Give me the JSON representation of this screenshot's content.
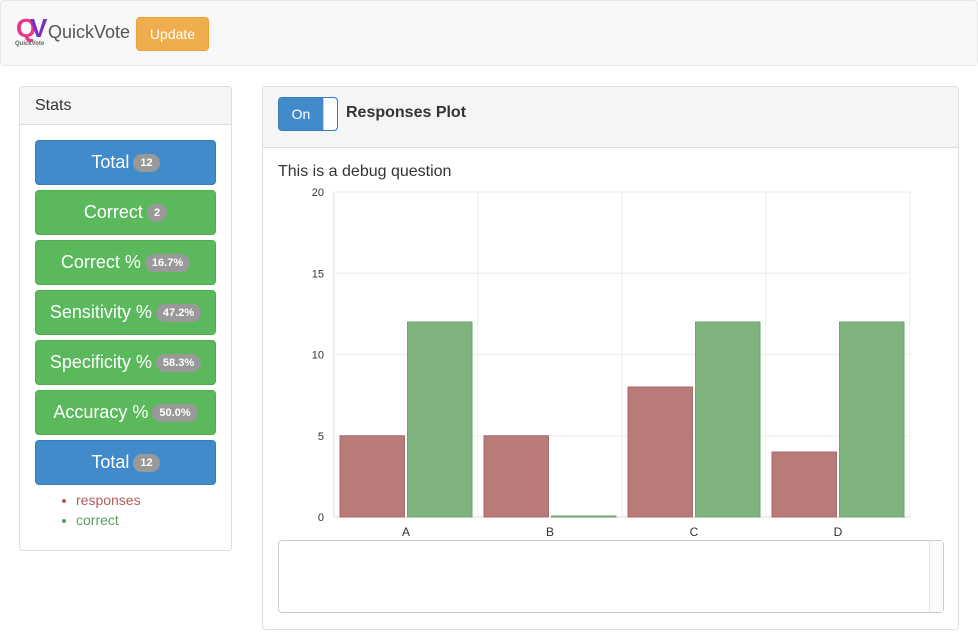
{
  "navbar": {
    "logo_letters": "QV",
    "logo_small": "QuickVote",
    "brand": "QuickVote",
    "update_label": "Update"
  },
  "stats": {
    "title": "Stats",
    "buttons": [
      {
        "label": "Total",
        "badge": "12",
        "color": "blue"
      },
      {
        "label": "Correct",
        "badge": "2",
        "color": "green"
      },
      {
        "label": "Correct %",
        "badge": "16.7%",
        "color": "green"
      },
      {
        "label": "Sensitivity %",
        "badge": "47.2%",
        "color": "green"
      },
      {
        "label": "Specificity %",
        "badge": "58.3%",
        "color": "green"
      },
      {
        "label": "Accuracy %",
        "badge": "50.0%",
        "color": "green"
      },
      {
        "label": "Total",
        "badge": "12",
        "color": "blue"
      }
    ],
    "legend": [
      {
        "label": "responses",
        "color": "#b65a5a"
      },
      {
        "label": "correct",
        "color": "#5a9e5a"
      }
    ]
  },
  "plot": {
    "toggle_label": "On",
    "title": "Responses Plot",
    "question": "This is a debug question"
  },
  "chart_data": {
    "type": "bar",
    "categories": [
      "A",
      "B",
      "C",
      "D"
    ],
    "series": [
      {
        "name": "responses",
        "values": [
          5,
          5,
          8,
          4
        ],
        "color": "#b97a7a"
      },
      {
        "name": "correct",
        "values": [
          12,
          0,
          12,
          12
        ],
        "color": "#7eb37e"
      }
    ],
    "ylim": [
      0,
      20
    ],
    "yticks": [
      0,
      5,
      10,
      15,
      20
    ],
    "grid": true
  }
}
